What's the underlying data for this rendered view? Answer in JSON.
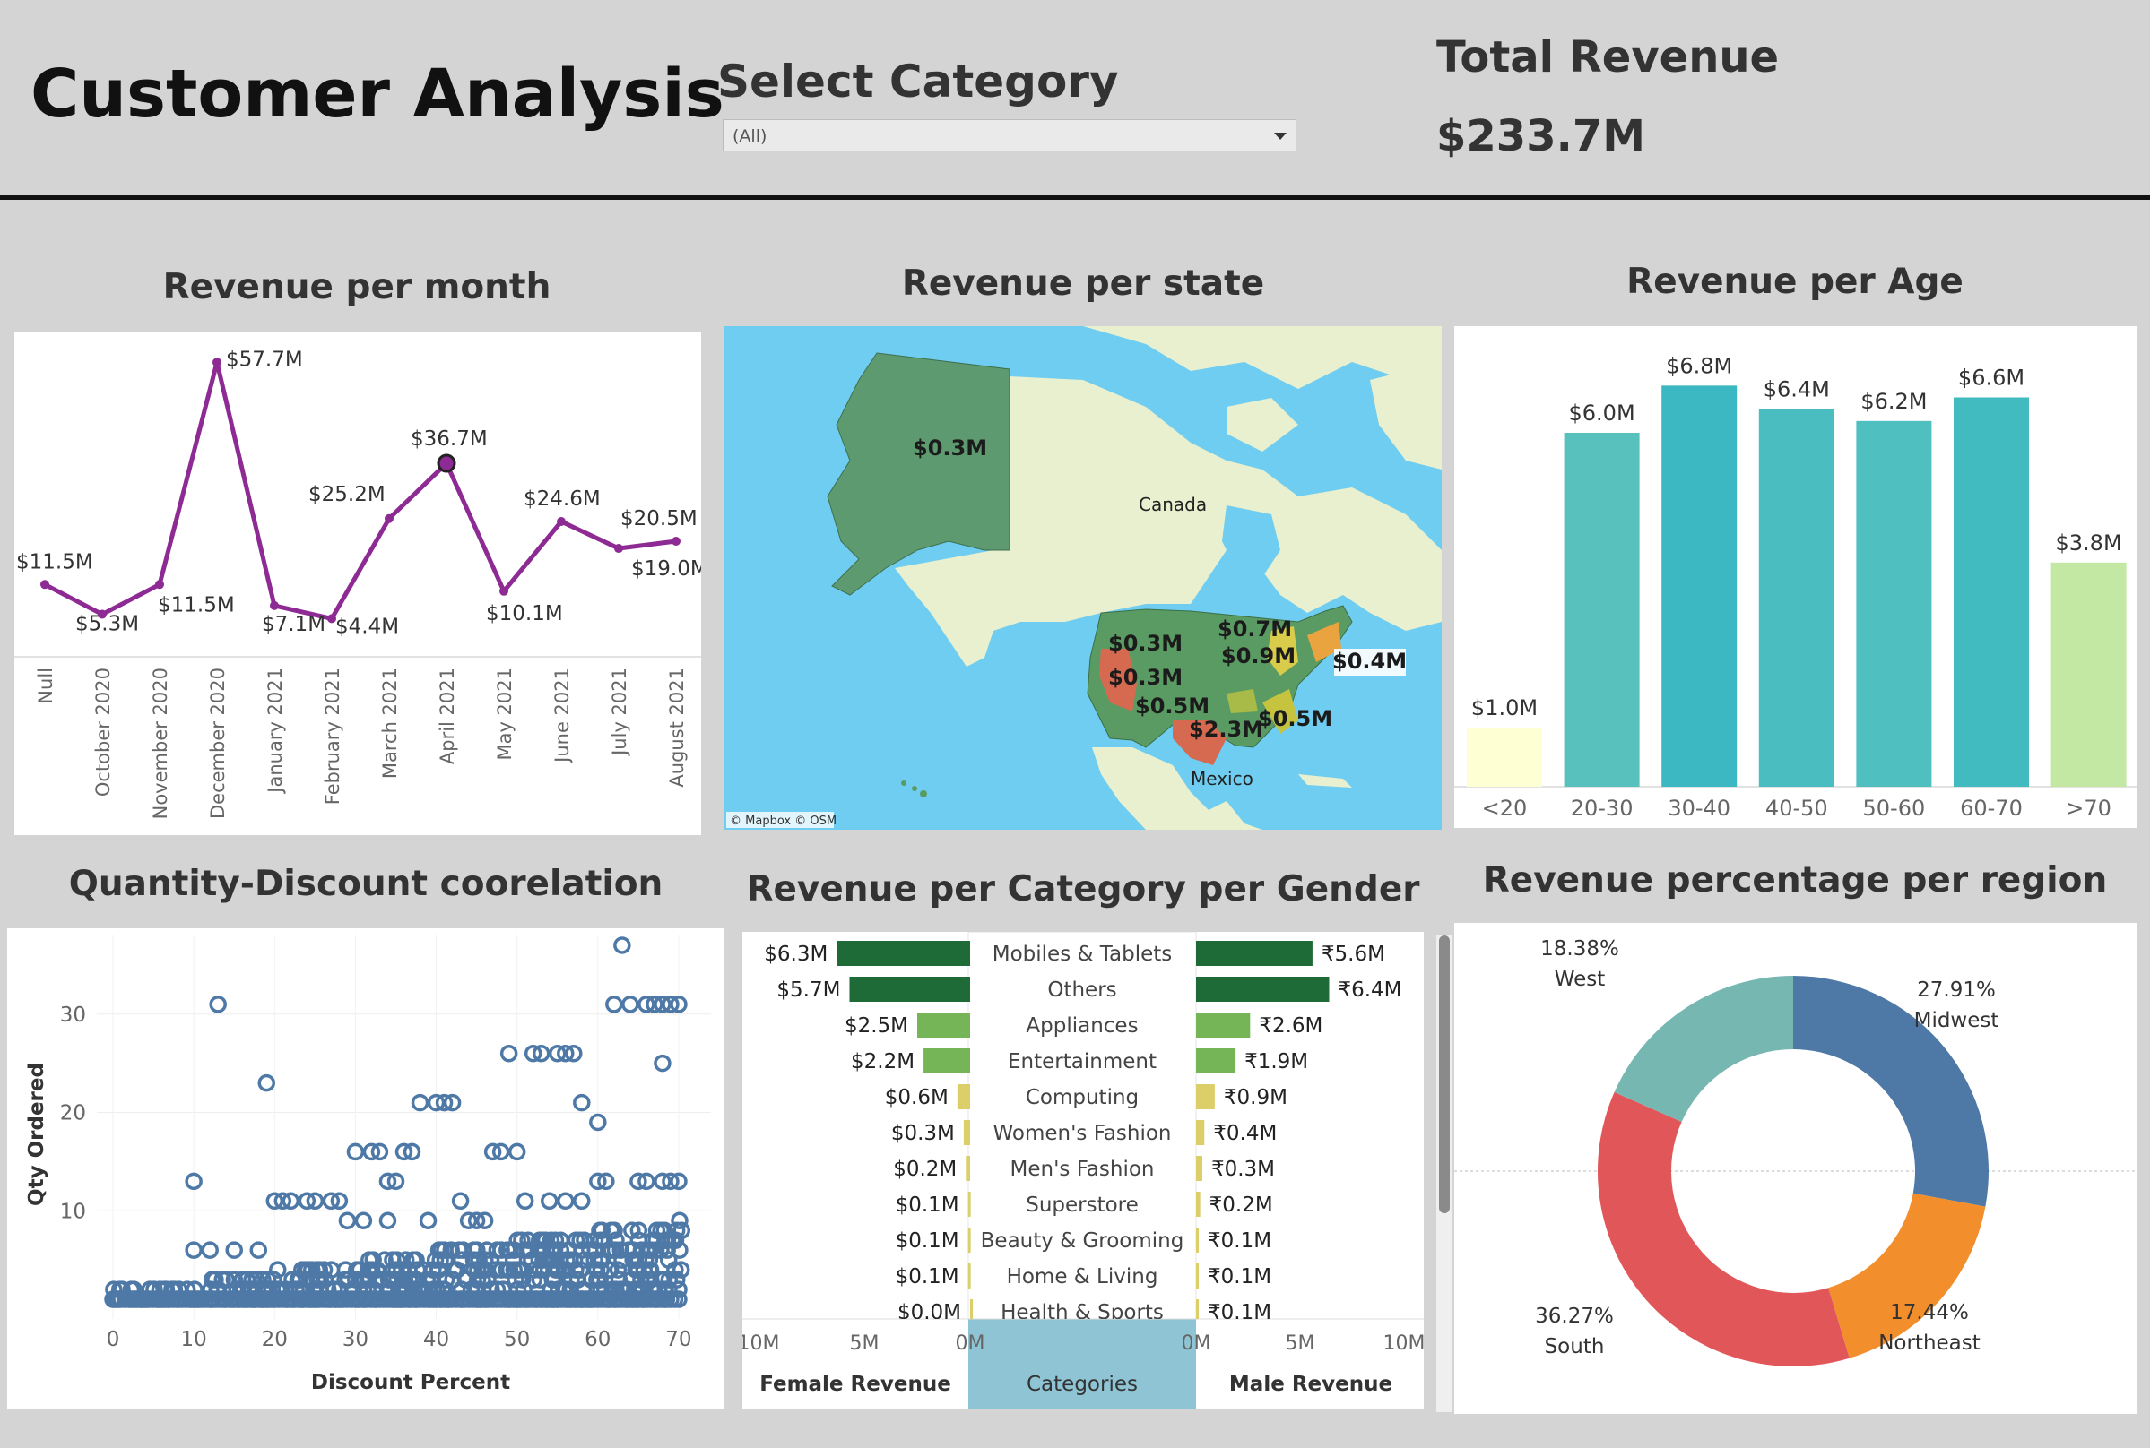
{
  "header": {
    "title": "Customer Analysis",
    "select_label": "Select Category",
    "select_value": "(All)",
    "total_label": "Total Revenue",
    "total_value": "$233.7M"
  },
  "colors": {
    "line": "#8e2a93",
    "scatter": "#4e79a7",
    "female_dark": "#1f6b37",
    "female_mid": "#76b557",
    "female_light": "#dccf6a",
    "map_water": "#6ecdf0",
    "map_land": "#e8f0cf"
  },
  "month_chart": {
    "title": "Revenue per month",
    "chart_data": {
      "type": "line",
      "categories": [
        "Null",
        "October 2020",
        "November 2020",
        "December 2020",
        "January 2021",
        "February 2021",
        "March 2021",
        "April 2021",
        "May 2021",
        "June 2021",
        "July 2021",
        "August 2021"
      ],
      "values": [
        11.5,
        5.3,
        11.5,
        57.7,
        7.1,
        4.4,
        25.2,
        36.7,
        10.1,
        24.6,
        19.0,
        20.5
      ],
      "labels": [
        "$11.5M",
        "$5.3M",
        "$11.5M",
        "$57.7M",
        "$7.1M",
        "$4.4M",
        "$25.2M",
        "$36.7M",
        "$10.1M",
        "$24.6M",
        "$19.0M",
        "$20.5M"
      ],
      "highlighted": "April 2021",
      "ylim": [
        0,
        60
      ]
    }
  },
  "map": {
    "title": "Revenue per state",
    "country_labels": [
      "Canada",
      "Mexico"
    ],
    "attribution": "© Mapbox © OSM",
    "value_labels": [
      "$0.3M",
      "$0.3M",
      "$0.3M",
      "$0.5M",
      "$0.7M",
      "$0.9M",
      "$0.4M",
      "$2.3M",
      "$0.5M"
    ]
  },
  "age_chart": {
    "title": "Revenue per Age",
    "chart_data": {
      "type": "bar",
      "categories": [
        "<20",
        "20-30",
        "30-40",
        "40-50",
        "50-60",
        "60-70",
        ">70"
      ],
      "values": [
        1.0,
        6.0,
        6.8,
        6.4,
        6.2,
        6.6,
        3.8
      ],
      "labels": [
        "$1.0M",
        "$6.0M",
        "$6.8M",
        "$6.4M",
        "$6.2M",
        "$6.6M",
        "$3.8M"
      ],
      "colors": [
        "#ffffd4",
        "#58c1bd",
        "#3bb8c1",
        "#4abdc0",
        "#4fbfbf",
        "#41bac0",
        "#c2e8a4"
      ],
      "ylim": [
        0,
        7.2
      ]
    }
  },
  "scatter_chart": {
    "title": "Quantity-Discount coorelation",
    "chart_data": {
      "type": "scatter",
      "xlabel": "Discount Percent",
      "ylabel": "Qty Ordered",
      "xticks": [
        0,
        10,
        20,
        30,
        40,
        50,
        60,
        70
      ],
      "yticks": [
        10,
        20,
        30
      ],
      "xlim": [
        -2,
        74
      ],
      "ylim": [
        -1,
        38
      ]
    }
  },
  "gender_chart": {
    "title": "Revenue per Category per Gender",
    "chart_data": {
      "type": "bar",
      "categories": [
        "Mobiles & Tablets",
        "Others",
        "Appliances",
        "Entertainment",
        "Computing",
        "Women's Fashion",
        "Men's Fashion",
        "Superstore",
        "Beauty & Grooming",
        "Home & Living",
        "Health & Sports"
      ],
      "series": [
        {
          "name": "Female Revenue",
          "values": [
            6.3,
            5.7,
            2.5,
            2.2,
            0.6,
            0.3,
            0.2,
            0.1,
            0.1,
            0.1,
            0.0
          ],
          "labels": [
            "$6.3M",
            "$5.7M",
            "$2.5M",
            "$2.2M",
            "$0.6M",
            "$0.3M",
            "$0.2M",
            "$0.1M",
            "$0.1M",
            "$0.1M",
            "$0.0M"
          ]
        },
        {
          "name": "Male Revenue",
          "values": [
            5.6,
            6.4,
            2.6,
            1.9,
            0.9,
            0.4,
            0.3,
            0.2,
            0.1,
            0.1,
            0.1
          ],
          "labels": [
            "₹5.6M",
            "₹6.4M",
            "₹2.6M",
            "₹1.9M",
            "₹0.9M",
            "₹0.4M",
            "₹0.3M",
            "₹0.2M",
            "₹0.1M",
            "₹0.1M",
            "₹0.1M"
          ]
        }
      ],
      "female_axis": [
        "10M",
        "5M",
        "0M"
      ],
      "male_axis": [
        "0M",
        "5M",
        "10M"
      ],
      "center_header": "Categories",
      "xlim": [
        0,
        10
      ]
    }
  },
  "region_chart": {
    "title": "Revenue percentage per region",
    "chart_data": {
      "type": "pie",
      "categories": [
        "Midwest",
        "Northeast",
        "South",
        "West"
      ],
      "values": [
        27.91,
        17.44,
        36.27,
        18.38
      ],
      "labels": [
        "27.91%",
        "17.44%",
        "36.27%",
        "18.38%"
      ],
      "colors": [
        "#4e79a7",
        "#f28e2b",
        "#e15759",
        "#76b7b2"
      ]
    }
  }
}
